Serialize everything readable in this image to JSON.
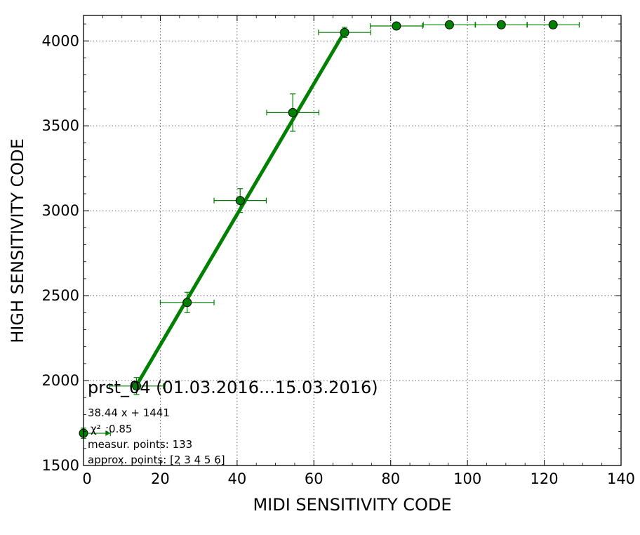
{
  "chart_data": {
    "type": "scatter",
    "xlabel": "MIDI SENSITIVITY CODE",
    "ylabel": "HIGH SENSITIVITY CODE",
    "xlim": [
      0,
      140
    ],
    "ylim": [
      1500,
      4150
    ],
    "xticks": [
      0,
      20,
      40,
      60,
      80,
      100,
      120,
      140
    ],
    "yticks": [
      1500,
      2000,
      2500,
      3000,
      3500,
      4000
    ],
    "grid": true,
    "series_color": "#008000",
    "points": [
      {
        "x": 0,
        "y": 1690,
        "xerr_lo": 0,
        "xerr_hi": 7,
        "yerr": 30
      },
      {
        "x": 13.8,
        "y": 1968,
        "xerr_lo": 7,
        "xerr_hi": 7,
        "yerr": 50
      },
      {
        "x": 27,
        "y": 2460,
        "xerr_lo": 7,
        "xerr_hi": 7,
        "yerr": 60
      },
      {
        "x": 40.8,
        "y": 3060,
        "xerr_lo": 6.8,
        "xerr_hi": 6.8,
        "yerr": 70
      },
      {
        "x": 54.5,
        "y": 3578,
        "xerr_lo": 6.8,
        "xerr_hi": 6.8,
        "yerr": 110
      },
      {
        "x": 68,
        "y": 4050,
        "xerr_lo": 6.8,
        "xerr_hi": 6.8,
        "yerr": 30
      },
      {
        "x": 81.5,
        "y": 4088,
        "xerr_lo": 6.8,
        "xerr_hi": 6.8,
        "yerr": 8
      },
      {
        "x": 95.3,
        "y": 4095,
        "xerr_lo": 6.8,
        "xerr_hi": 6.8,
        "yerr": 5
      },
      {
        "x": 108.8,
        "y": 4095,
        "xerr_lo": 6.8,
        "xerr_hi": 6.8,
        "yerr": 5
      },
      {
        "x": 122.3,
        "y": 4095,
        "xerr_lo": 6.8,
        "xerr_hi": 6.8,
        "yerr": 5
      }
    ],
    "fit": {
      "slope": 38.44,
      "intercept": 1441,
      "x_from": 13.8,
      "x_to": 68
    },
    "annotations": {
      "title": "prst_04 (01.03.2016...15.03.2016)",
      "equation": "38.44 x + 1441",
      "chi_symbol": "χ²",
      "chi_value": ":0.85",
      "measur_points": "measur. points: 133",
      "approx_points": "approx. points: [2 3 4 5 6]"
    }
  }
}
